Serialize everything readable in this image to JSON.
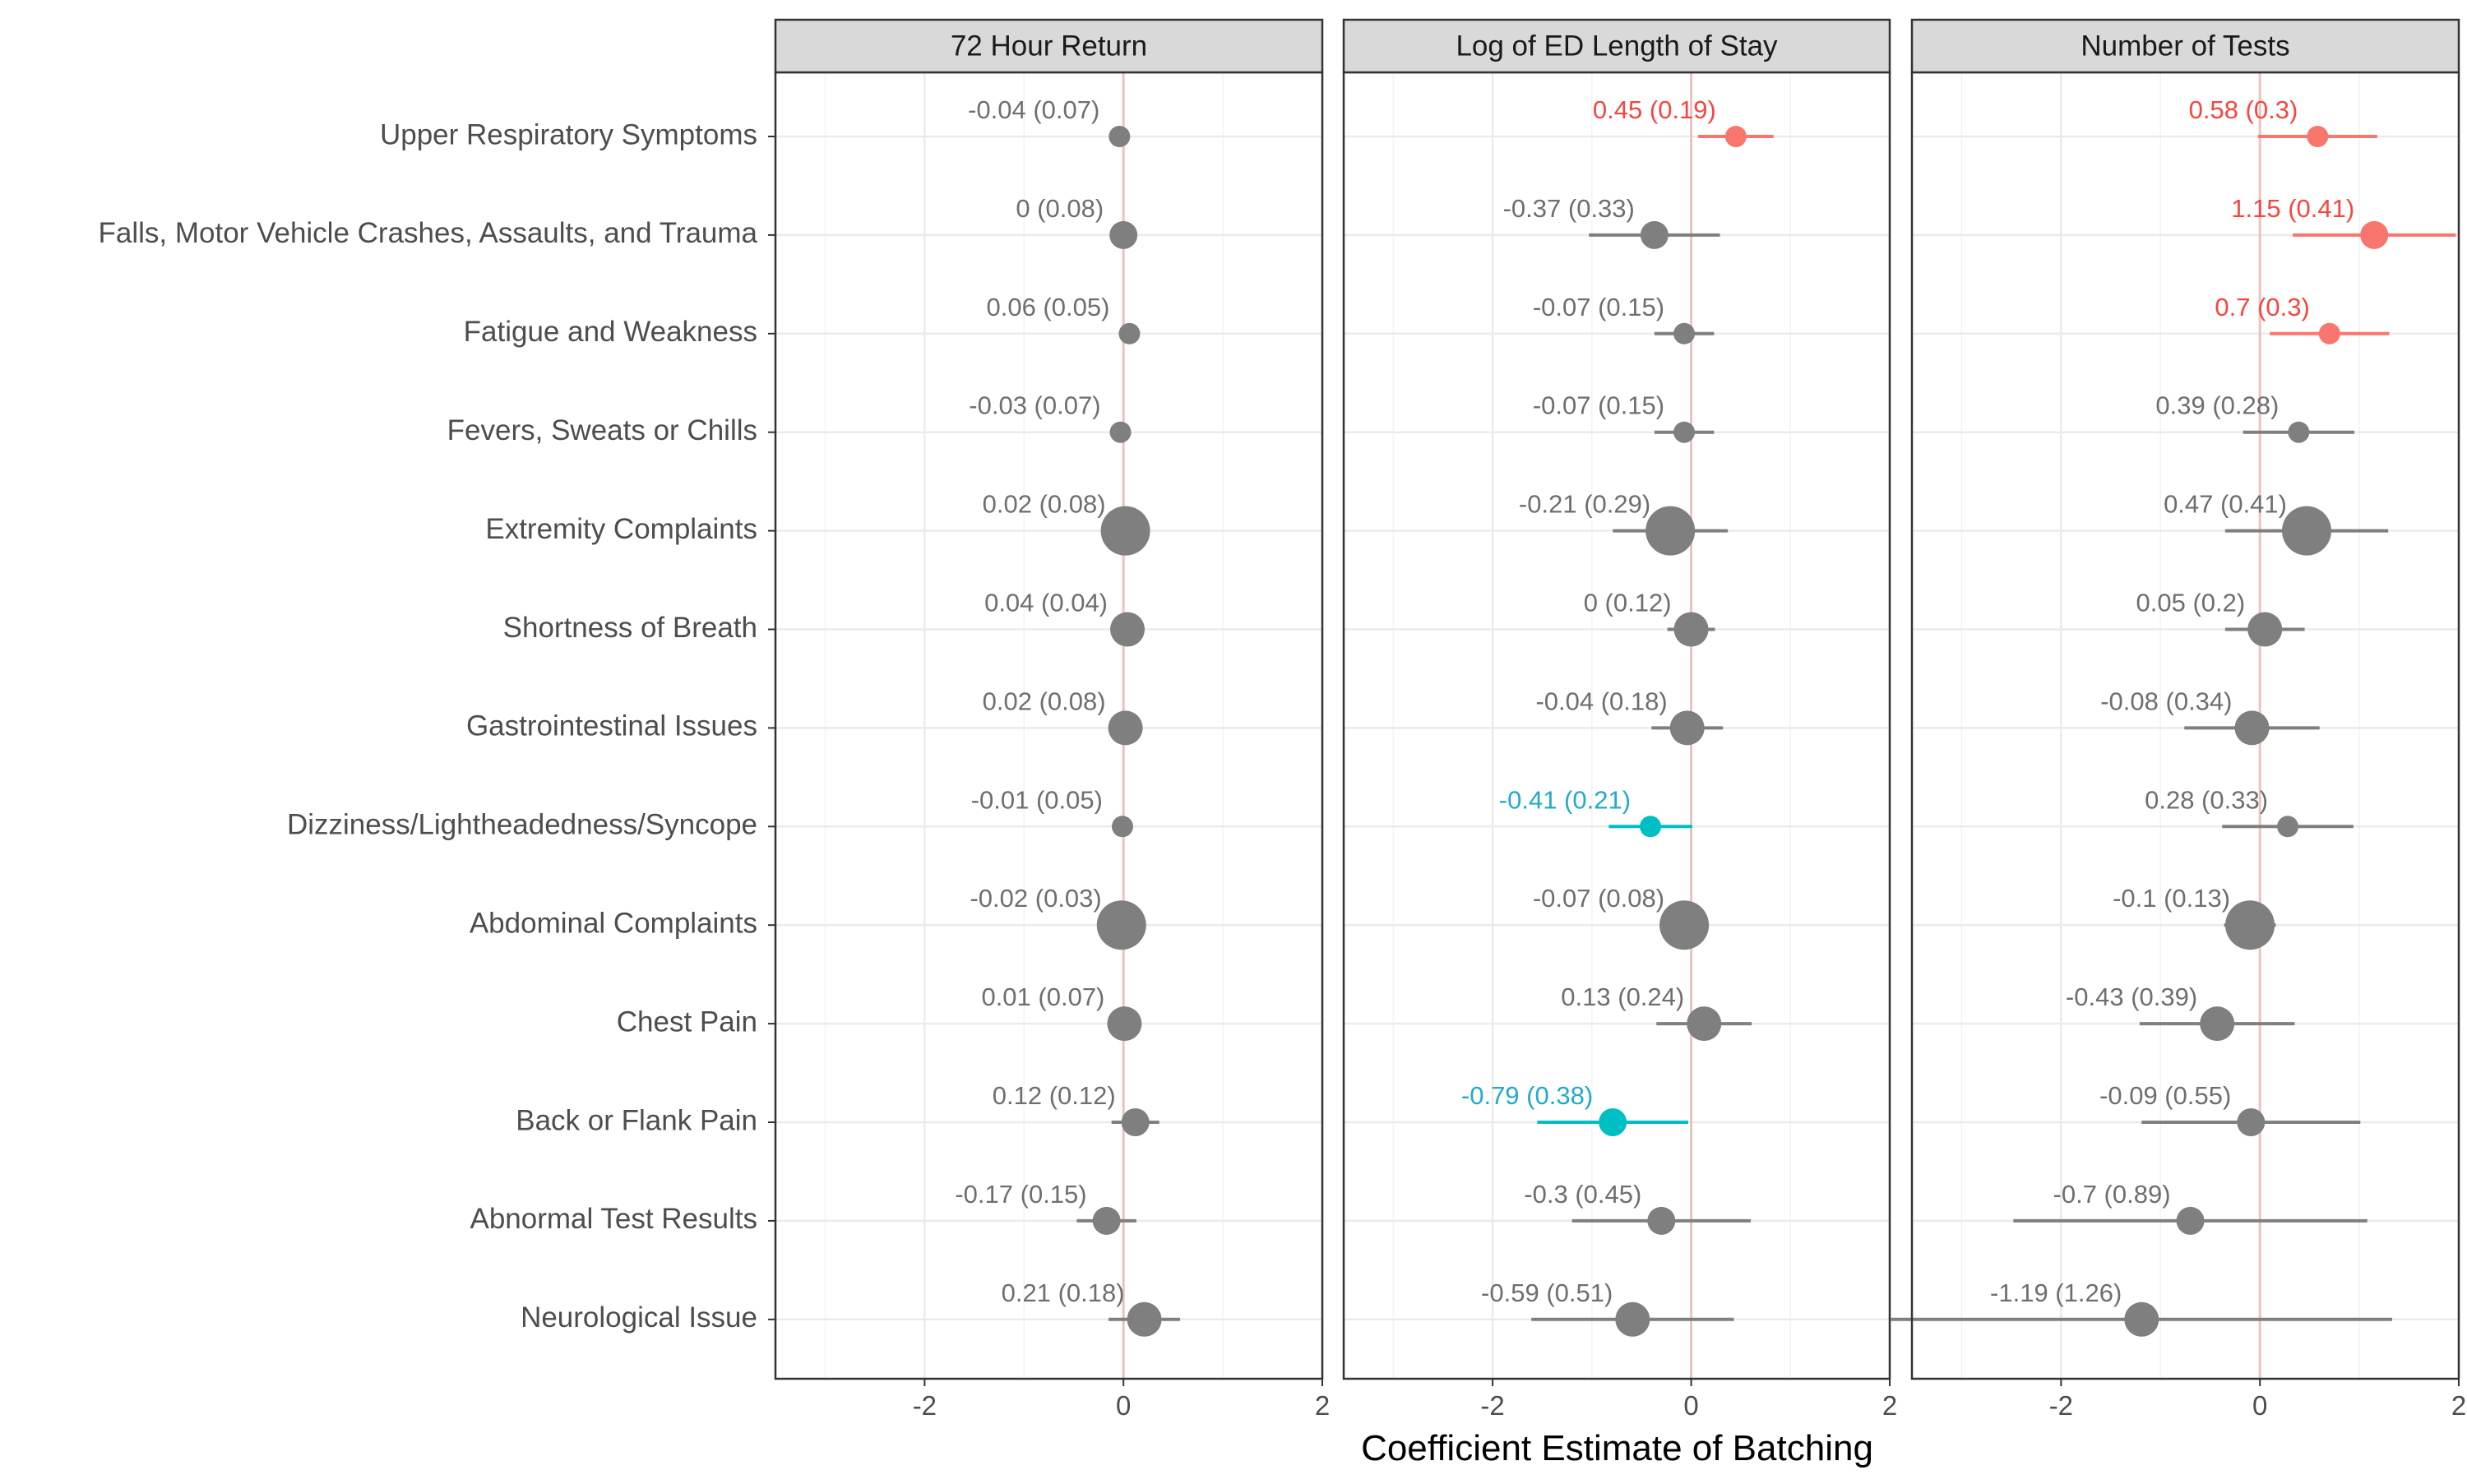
{
  "chart_data": {
    "type": "scatter",
    "subtype": "coefficient-forest-plot-faceted",
    "xlabel": "Coefficient Estimate of Batching",
    "xlim": [
      -3.5,
      2.0
    ],
    "xticks": [
      -2,
      0,
      2
    ],
    "xtick_labels": [
      "-2",
      "0",
      "2"
    ],
    "reference_line_x": 0,
    "grid": true,
    "legend": "none",
    "colors": {
      "significant_positive": "#f8766d",
      "significant_negative": "#00bfc4",
      "not_significant": "#7f7f7f",
      "reference_line": "#e9c3c0",
      "strip_fill": "#d9d9d9",
      "grid": "#ebebeb"
    },
    "categories": [
      "Upper Respiratory Symptoms",
      "Falls, Motor Vehicle Crashes, Assaults, and Trauma",
      "Fatigue and Weakness",
      "Fevers, Sweats or Chills",
      "Extremity Complaints",
      "Shortness of Breath",
      "Gastrointestinal Issues",
      "Dizziness/Lightheadedness/Syncope",
      "Abdominal Complaints",
      "Chest Pain",
      "Back or Flank Pain",
      "Abnormal Test Results",
      "Neurological Issue"
    ],
    "point_size_by_category": [
      1,
      2,
      1,
      1,
      5,
      3,
      3,
      1,
      5,
      3,
      2,
      2,
      3
    ],
    "facets": [
      {
        "title": "72 Hour Return",
        "points": [
          {
            "estimate": -0.04,
            "lo": -0.04,
            "hi": -0.04,
            "label": "-0.04 (0.07)",
            "sig": "none"
          },
          {
            "estimate": 0.0,
            "lo": 0.0,
            "hi": 0.0,
            "label": "0 (0.08)",
            "sig": "none"
          },
          {
            "estimate": 0.06,
            "lo": 0.06,
            "hi": 0.06,
            "label": "0.06 (0.05)",
            "sig": "none"
          },
          {
            "estimate": -0.03,
            "lo": -0.03,
            "hi": -0.03,
            "label": "-0.03 (0.07)",
            "sig": "none"
          },
          {
            "estimate": 0.02,
            "lo": 0.02,
            "hi": 0.02,
            "label": "0.02 (0.08)",
            "sig": "none"
          },
          {
            "estimate": 0.04,
            "lo": 0.04,
            "hi": 0.04,
            "label": "0.04 (0.04)",
            "sig": "none"
          },
          {
            "estimate": 0.02,
            "lo": 0.02,
            "hi": 0.02,
            "label": "0.02 (0.08)",
            "sig": "none"
          },
          {
            "estimate": -0.01,
            "lo": -0.01,
            "hi": -0.01,
            "label": "-0.01 (0.05)",
            "sig": "none"
          },
          {
            "estimate": -0.02,
            "lo": -0.02,
            "hi": -0.02,
            "label": "-0.02 (0.03)",
            "sig": "none"
          },
          {
            "estimate": 0.01,
            "lo": 0.01,
            "hi": 0.01,
            "label": "0.01 (0.07)",
            "sig": "none"
          },
          {
            "estimate": 0.12,
            "lo": -0.12,
            "hi": 0.36,
            "label": "0.12 (0.12)",
            "sig": "none"
          },
          {
            "estimate": -0.17,
            "lo": -0.47,
            "hi": 0.13,
            "label": "-0.17 (0.15)",
            "sig": "none"
          },
          {
            "estimate": 0.21,
            "lo": -0.15,
            "hi": 0.57,
            "label": "0.21 (0.18)",
            "sig": "none"
          }
        ]
      },
      {
        "title": "Log of ED Length of Stay",
        "points": [
          {
            "estimate": 0.45,
            "lo": 0.07,
            "hi": 0.83,
            "label": "0.45 (0.19)",
            "sig": "positive"
          },
          {
            "estimate": -0.37,
            "lo": -1.03,
            "hi": 0.29,
            "label": "-0.37 (0.33)",
            "sig": "none"
          },
          {
            "estimate": -0.07,
            "lo": -0.37,
            "hi": 0.23,
            "label": "-0.07 (0.15)",
            "sig": "none"
          },
          {
            "estimate": -0.07,
            "lo": -0.37,
            "hi": 0.23,
            "label": "-0.07 (0.15)",
            "sig": "none"
          },
          {
            "estimate": -0.21,
            "lo": -0.79,
            "hi": 0.37,
            "label": "-0.21 (0.29)",
            "sig": "none"
          },
          {
            "estimate": 0.0,
            "lo": -0.24,
            "hi": 0.24,
            "label": "0 (0.12)",
            "sig": "none"
          },
          {
            "estimate": -0.04,
            "lo": -0.4,
            "hi": 0.32,
            "label": "-0.04 (0.18)",
            "sig": "none"
          },
          {
            "estimate": -0.41,
            "lo": -0.83,
            "hi": 0.01,
            "label": "-0.41 (0.21)",
            "sig": "negative"
          },
          {
            "estimate": -0.07,
            "lo": -0.07,
            "hi": -0.07,
            "label": "-0.07 (0.08)",
            "sig": "none"
          },
          {
            "estimate": 0.13,
            "lo": -0.35,
            "hi": 0.61,
            "label": "0.13 (0.24)",
            "sig": "none"
          },
          {
            "estimate": -0.79,
            "lo": -1.55,
            "hi": -0.03,
            "label": "-0.79 (0.38)",
            "sig": "negative"
          },
          {
            "estimate": -0.3,
            "lo": -1.2,
            "hi": 0.6,
            "label": "-0.3 (0.45)",
            "sig": "none"
          },
          {
            "estimate": -0.59,
            "lo": -1.61,
            "hi": 0.43,
            "label": "-0.59 (0.51)",
            "sig": "none"
          }
        ]
      },
      {
        "title": "Number of Tests",
        "points": [
          {
            "estimate": 0.58,
            "lo": -0.02,
            "hi": 1.18,
            "label": "0.58 (0.3)",
            "sig": "positive"
          },
          {
            "estimate": 1.15,
            "lo": 0.33,
            "hi": 1.97,
            "label": "1.15 (0.41)",
            "sig": "positive"
          },
          {
            "estimate": 0.7,
            "lo": 0.1,
            "hi": 1.3,
            "label": "0.7 (0.3)",
            "sig": "positive"
          },
          {
            "estimate": 0.39,
            "lo": -0.17,
            "hi": 0.95,
            "label": "0.39 (0.28)",
            "sig": "none"
          },
          {
            "estimate": 0.47,
            "lo": -0.35,
            "hi": 1.29,
            "label": "0.47 (0.41)",
            "sig": "none"
          },
          {
            "estimate": 0.05,
            "lo": -0.35,
            "hi": 0.45,
            "label": "0.05 (0.2)",
            "sig": "none"
          },
          {
            "estimate": -0.08,
            "lo": -0.76,
            "hi": 0.6,
            "label": "-0.08 (0.34)",
            "sig": "none"
          },
          {
            "estimate": 0.28,
            "lo": -0.38,
            "hi": 0.94,
            "label": "0.28 (0.33)",
            "sig": "none"
          },
          {
            "estimate": -0.1,
            "lo": -0.36,
            "hi": 0.16,
            "label": "-0.1 (0.13)",
            "sig": "none"
          },
          {
            "estimate": -0.43,
            "lo": -1.21,
            "hi": 0.35,
            "label": "-0.43 (0.39)",
            "sig": "none"
          },
          {
            "estimate": -0.09,
            "lo": -1.19,
            "hi": 1.01,
            "label": "-0.09 (0.55)",
            "sig": "none"
          },
          {
            "estimate": -0.7,
            "lo": -2.48,
            "hi": 1.08,
            "label": "-0.7 (0.89)",
            "sig": "none"
          },
          {
            "estimate": -1.19,
            "lo": -3.71,
            "hi": 1.33,
            "label": "-1.19 (1.26)",
            "sig": "none"
          }
        ]
      }
    ]
  }
}
